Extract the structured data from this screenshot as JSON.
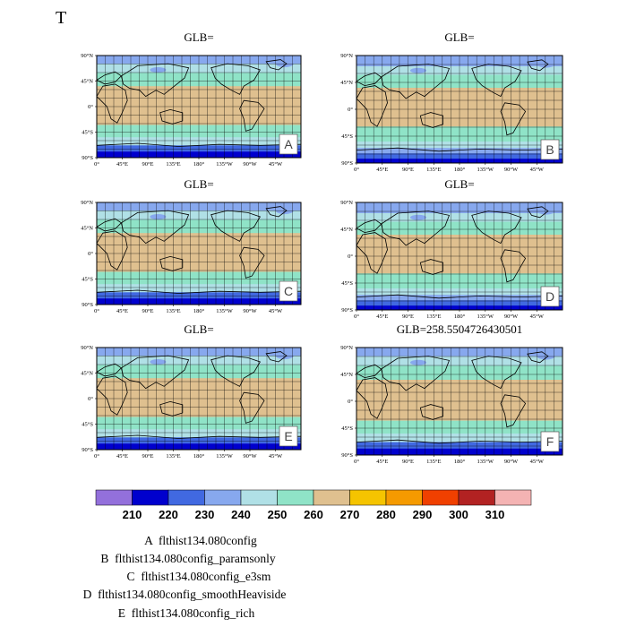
{
  "figure": {
    "title": "T"
  },
  "chart_data": {
    "type": "heatmap",
    "title": "T",
    "x_ticks": [
      "0°",
      "45°E",
      "90°E",
      "135°E",
      "180°",
      "135°W",
      "90°W",
      "45°W"
    ],
    "y_ticks": [
      "90°N",
      "45°N",
      "0°",
      "45°S",
      "90°S"
    ],
    "panels": [
      {
        "letter": "A",
        "title": "GLB="
      },
      {
        "letter": "B",
        "title": "GLB="
      },
      {
        "letter": "C",
        "title": "GLB="
      },
      {
        "letter": "D",
        "title": "GLB="
      },
      {
        "letter": "E",
        "title": "GLB="
      },
      {
        "letter": "F",
        "title": "GLB=258.5504726430501"
      }
    ],
    "colorbar": {
      "labels": [
        "210",
        "220",
        "230",
        "240",
        "250",
        "260",
        "270",
        "280",
        "290",
        "300",
        "310"
      ],
      "colors": [
        "#9370db",
        "#0000cd",
        "#4169e1",
        "#87a8ee",
        "#b0e0e6",
        "#8fe3c7",
        "#dfc08f",
        "#f5c400",
        "#f59a00",
        "#f04000",
        "#b22222",
        "#f4b3b3"
      ]
    },
    "legend": [
      {
        "letter": "A",
        "text": "flthist134.080config"
      },
      {
        "letter": "B",
        "text": "flthist134.080config_paramsonly"
      },
      {
        "letter": "C",
        "text": "flthist134.080config_e3sm"
      },
      {
        "letter": "D",
        "text": "flthist134.080config_smoothHeaviside"
      },
      {
        "letter": "E",
        "text": "flthist134.080config_rich"
      }
    ]
  }
}
